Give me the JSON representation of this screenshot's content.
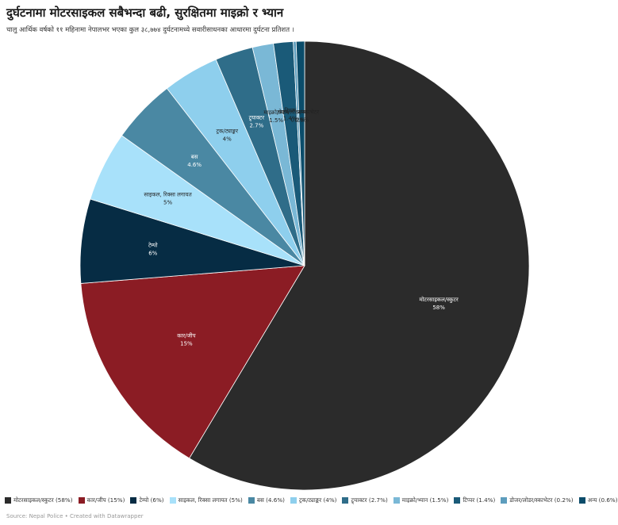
{
  "header": {
    "title": "दुर्घटनामा मोटरसाइकल सबैभन्दा बढी, सुरक्षितमा माइक्रो र भ्यान",
    "subtitle": "चालु आर्थिक वर्षको ११ महिनामा नेपालभर भएका कुल ३८,७७४ दुर्घटनामध्ये सवारीसाधनका आधारमा दुर्घटना प्रतिशत ।"
  },
  "footer": {
    "source": "Source: Nepal Police • Created with Datawrapper"
  },
  "chart_data": {
    "type": "pie",
    "unit": "%",
    "slices": [
      {
        "name": "मोटरसाइकल/स्कुटर",
        "value": 58,
        "value_label": "58%",
        "legend": "मोटरसाइकल/स्कुटर (58%)",
        "color": "#2b2b2b",
        "label_color": "#ffffff"
      },
      {
        "name": "कार/जीप",
        "value": 15,
        "value_label": "15%",
        "legend": "कार/जीप (15%)",
        "color": "#8b1c24",
        "label_color": "#ffffff"
      },
      {
        "name": "टेम्पो",
        "value": 6,
        "value_label": "6%",
        "legend": "टेम्पो (6%)",
        "color": "#062c44",
        "label_color": "#ffffff"
      },
      {
        "name": "साइकल, रिक्सा लगायत",
        "value": 5,
        "value_label": "5%",
        "legend": "साइकल, रिक्सा लगायत (5%)",
        "color": "#a8e1fa",
        "label_color": "#222222"
      },
      {
        "name": "बस",
        "value": 4.6,
        "value_label": "4.6%",
        "legend": "बस (4.6%)",
        "color": "#4a88a3",
        "label_color": "#ffffff"
      },
      {
        "name": "ट्रक/ट्याङ्कर",
        "value": 4,
        "value_label": "4%",
        "legend": "ट्रक/ट्याङ्कर (4%)",
        "color": "#8ecfed",
        "label_color": "#222222"
      },
      {
        "name": "ट्र्याक्टर",
        "value": 2.7,
        "value_label": "2.7%",
        "legend": "ट्र्याक्टर (2.7%)",
        "color": "#2f6d89",
        "label_color": "#ffffff"
      },
      {
        "name": "माइक्रो/भ्यान",
        "value": 1.5,
        "value_label": "1.5%",
        "legend": "माइक्रो/भ्यान (1.5%)",
        "color": "#7ab8d6",
        "label_color": "#222222"
      },
      {
        "name": "टिप्पर",
        "value": 1.4,
        "value_label": "1.4%",
        "legend": "टिप्पर (1.4%)",
        "color": "#1a5a78",
        "label_color": "#222222"
      },
      {
        "name": "डोजर/लोडर/स्काभेटर",
        "value": 0.2,
        "value_label": "0.2%",
        "legend": "डोजर/लोडर/स्काभेटर (0.2%)",
        "color": "#5d9dbd",
        "label_color": "#222222"
      },
      {
        "name": "अन्य",
        "value": 0.6,
        "value_label": "0.6%",
        "legend": "अन्य (0.6%)",
        "color": "#0b4c6a",
        "label_color": "#222222"
      }
    ],
    "legend_position": "bottom",
    "start_angle": "12 o'clock",
    "direction": "clockwise"
  }
}
